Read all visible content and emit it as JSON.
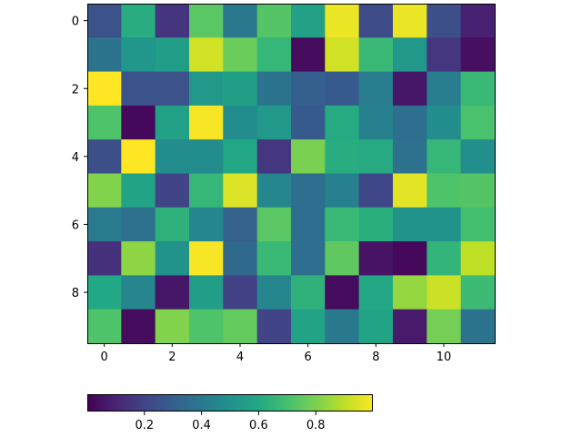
{
  "chart_data": {
    "type": "heatmap",
    "title": "",
    "xlabel": "",
    "ylabel": "",
    "rows": 10,
    "cols": 12,
    "x_ticks": [
      0,
      2,
      4,
      6,
      8,
      10
    ],
    "y_ticks": [
      0,
      2,
      4,
      6,
      8
    ],
    "x_tick_labels": [
      "0",
      "2",
      "4",
      "6",
      "8",
      "10"
    ],
    "y_tick_labels": [
      "0",
      "2",
      "4",
      "6",
      "8"
    ],
    "colormap": "viridis",
    "color_range": [
      0.0,
      1.0
    ],
    "colorbar": {
      "orientation": "horizontal",
      "placement": "bottom",
      "ticks": [
        0.2,
        0.4,
        0.6,
        0.8
      ],
      "tick_labels": [
        "0.2",
        "0.4",
        "0.6",
        "0.8"
      ]
    },
    "values": [
      [
        0.25,
        0.62,
        0.15,
        0.74,
        0.4,
        0.73,
        0.57,
        0.97,
        0.23,
        0.97,
        0.24,
        0.09
      ],
      [
        0.38,
        0.52,
        0.55,
        0.93,
        0.77,
        0.66,
        0.03,
        0.93,
        0.67,
        0.53,
        0.16,
        0.04
      ],
      [
        1.0,
        0.26,
        0.25,
        0.53,
        0.56,
        0.38,
        0.3,
        0.28,
        0.42,
        0.06,
        0.42,
        0.67
      ],
      [
        0.72,
        0.02,
        0.57,
        0.99,
        0.48,
        0.53,
        0.28,
        0.61,
        0.43,
        0.36,
        0.48,
        0.71
      ],
      [
        0.24,
        1.0,
        0.48,
        0.48,
        0.6,
        0.16,
        0.8,
        0.62,
        0.61,
        0.37,
        0.66,
        0.49
      ],
      [
        0.81,
        0.58,
        0.2,
        0.66,
        0.95,
        0.46,
        0.36,
        0.43,
        0.21,
        0.96,
        0.72,
        0.73
      ],
      [
        0.41,
        0.37,
        0.64,
        0.46,
        0.31,
        0.74,
        0.36,
        0.67,
        0.63,
        0.51,
        0.51,
        0.7
      ],
      [
        0.14,
        0.83,
        0.51,
        0.99,
        0.34,
        0.67,
        0.36,
        0.75,
        0.05,
        0.02,
        0.65,
        0.9
      ],
      [
        0.6,
        0.45,
        0.06,
        0.55,
        0.19,
        0.46,
        0.64,
        0.03,
        0.6,
        0.84,
        0.92,
        0.68
      ],
      [
        0.72,
        0.03,
        0.81,
        0.72,
        0.76,
        0.2,
        0.58,
        0.4,
        0.58,
        0.07,
        0.79,
        0.38
      ]
    ]
  }
}
